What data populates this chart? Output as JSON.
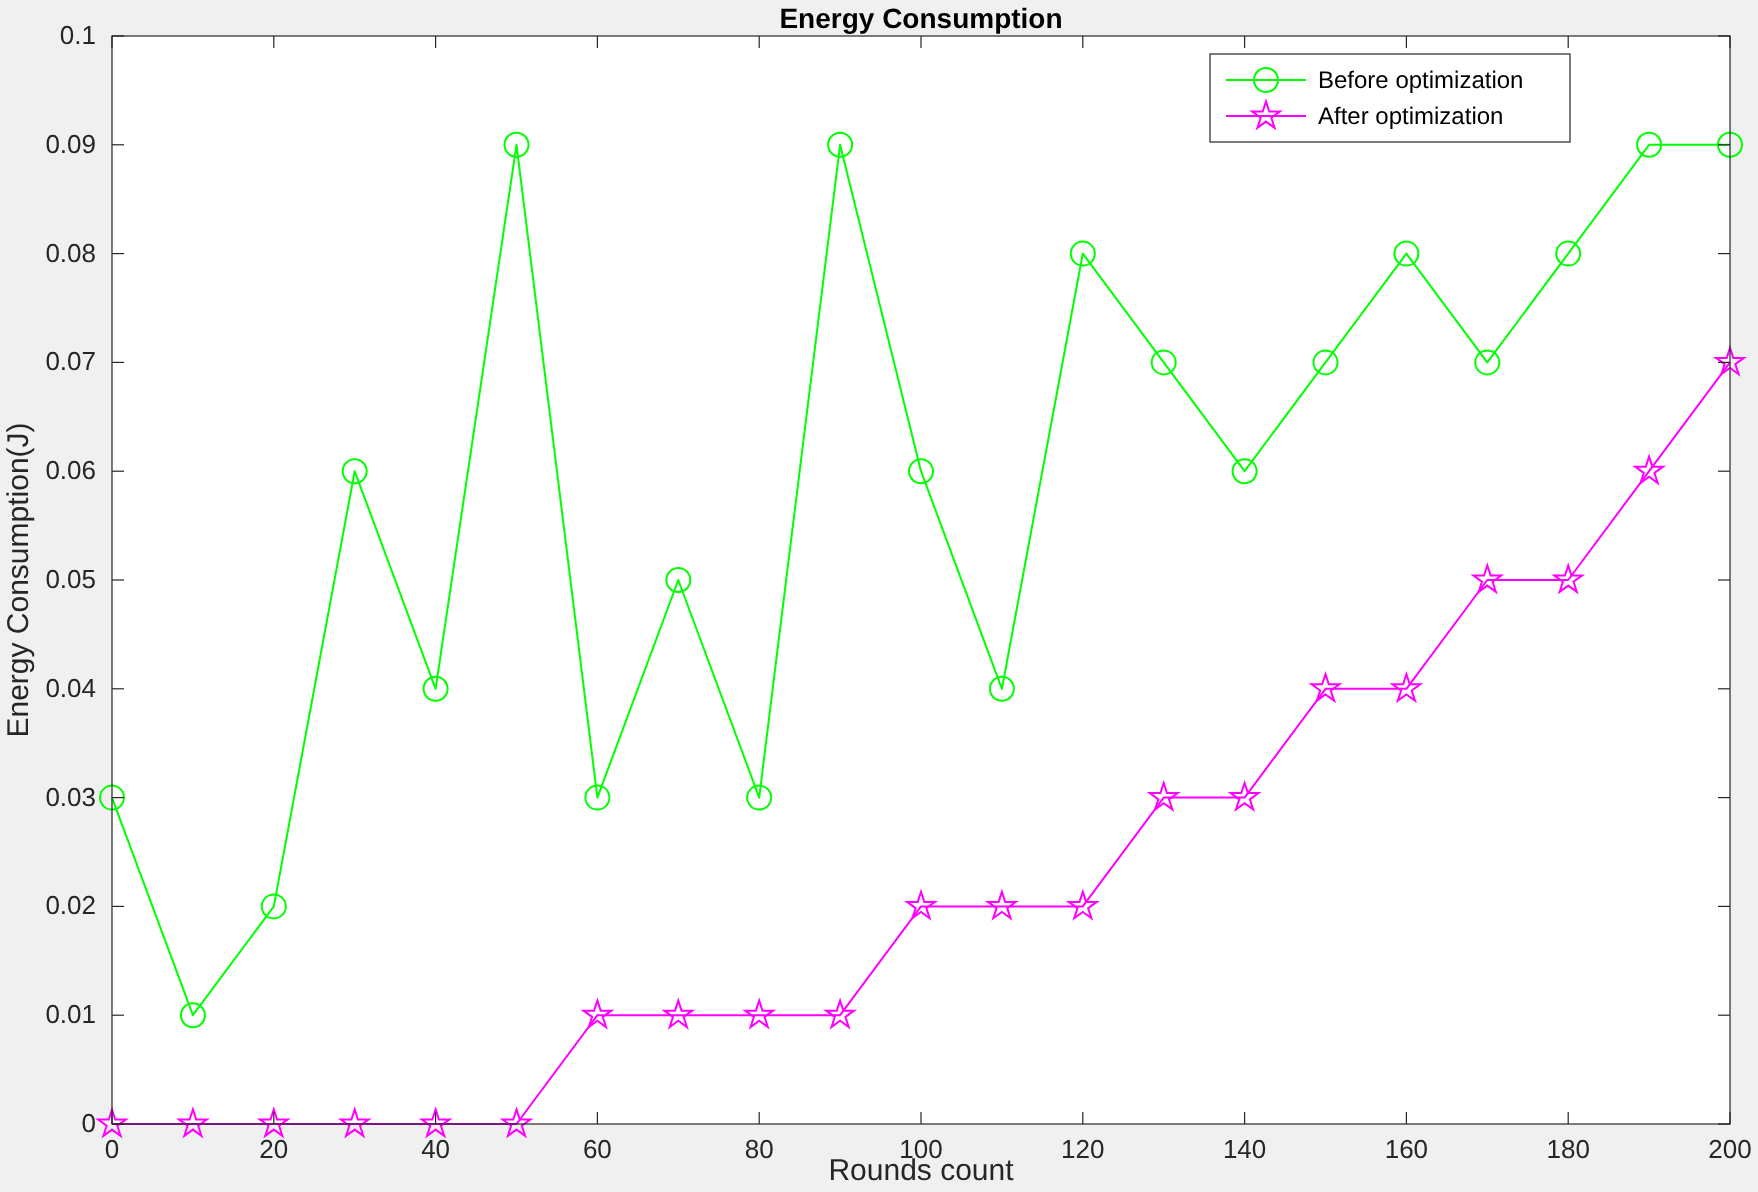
{
  "chart_data": {
    "type": "line",
    "title": "Energy Consumption",
    "xlabel": "Rounds count",
    "ylabel": "Energy Consumption(J)",
    "x": [
      0,
      10,
      20,
      30,
      40,
      50,
      60,
      70,
      80,
      90,
      100,
      110,
      120,
      130,
      140,
      150,
      160,
      170,
      180,
      190,
      200
    ],
    "series": [
      {
        "name": "Before optimization",
        "color": "#00ff00",
        "marker": "circle",
        "values": [
          0.03,
          0.01,
          0.02,
          0.06,
          0.04,
          0.09,
          0.03,
          0.05,
          0.03,
          0.09,
          0.06,
          0.04,
          0.08,
          0.07,
          0.06,
          0.07,
          0.08,
          0.07,
          0.08,
          0.09,
          0.09
        ]
      },
      {
        "name": "After optimization",
        "color": "#ff00ff",
        "marker": "star",
        "values": [
          0,
          0,
          0,
          0,
          0,
          0,
          0.01,
          0.01,
          0.01,
          0.01,
          0.02,
          0.02,
          0.02,
          0.03,
          0.03,
          0.04,
          0.04,
          0.05,
          0.05,
          0.06,
          0.07
        ]
      }
    ],
    "xlim": [
      0,
      200
    ],
    "xticks": [
      0,
      20,
      40,
      60,
      80,
      100,
      120,
      140,
      160,
      180,
      200
    ],
    "ylim": [
      0,
      0.1
    ],
    "yticks": [
      0,
      0.01,
      0.02,
      0.03,
      0.04,
      0.05,
      0.06,
      0.07,
      0.08,
      0.09,
      0.1
    ],
    "grid": false,
    "legend": "top right",
    "line_style": "solid"
  }
}
